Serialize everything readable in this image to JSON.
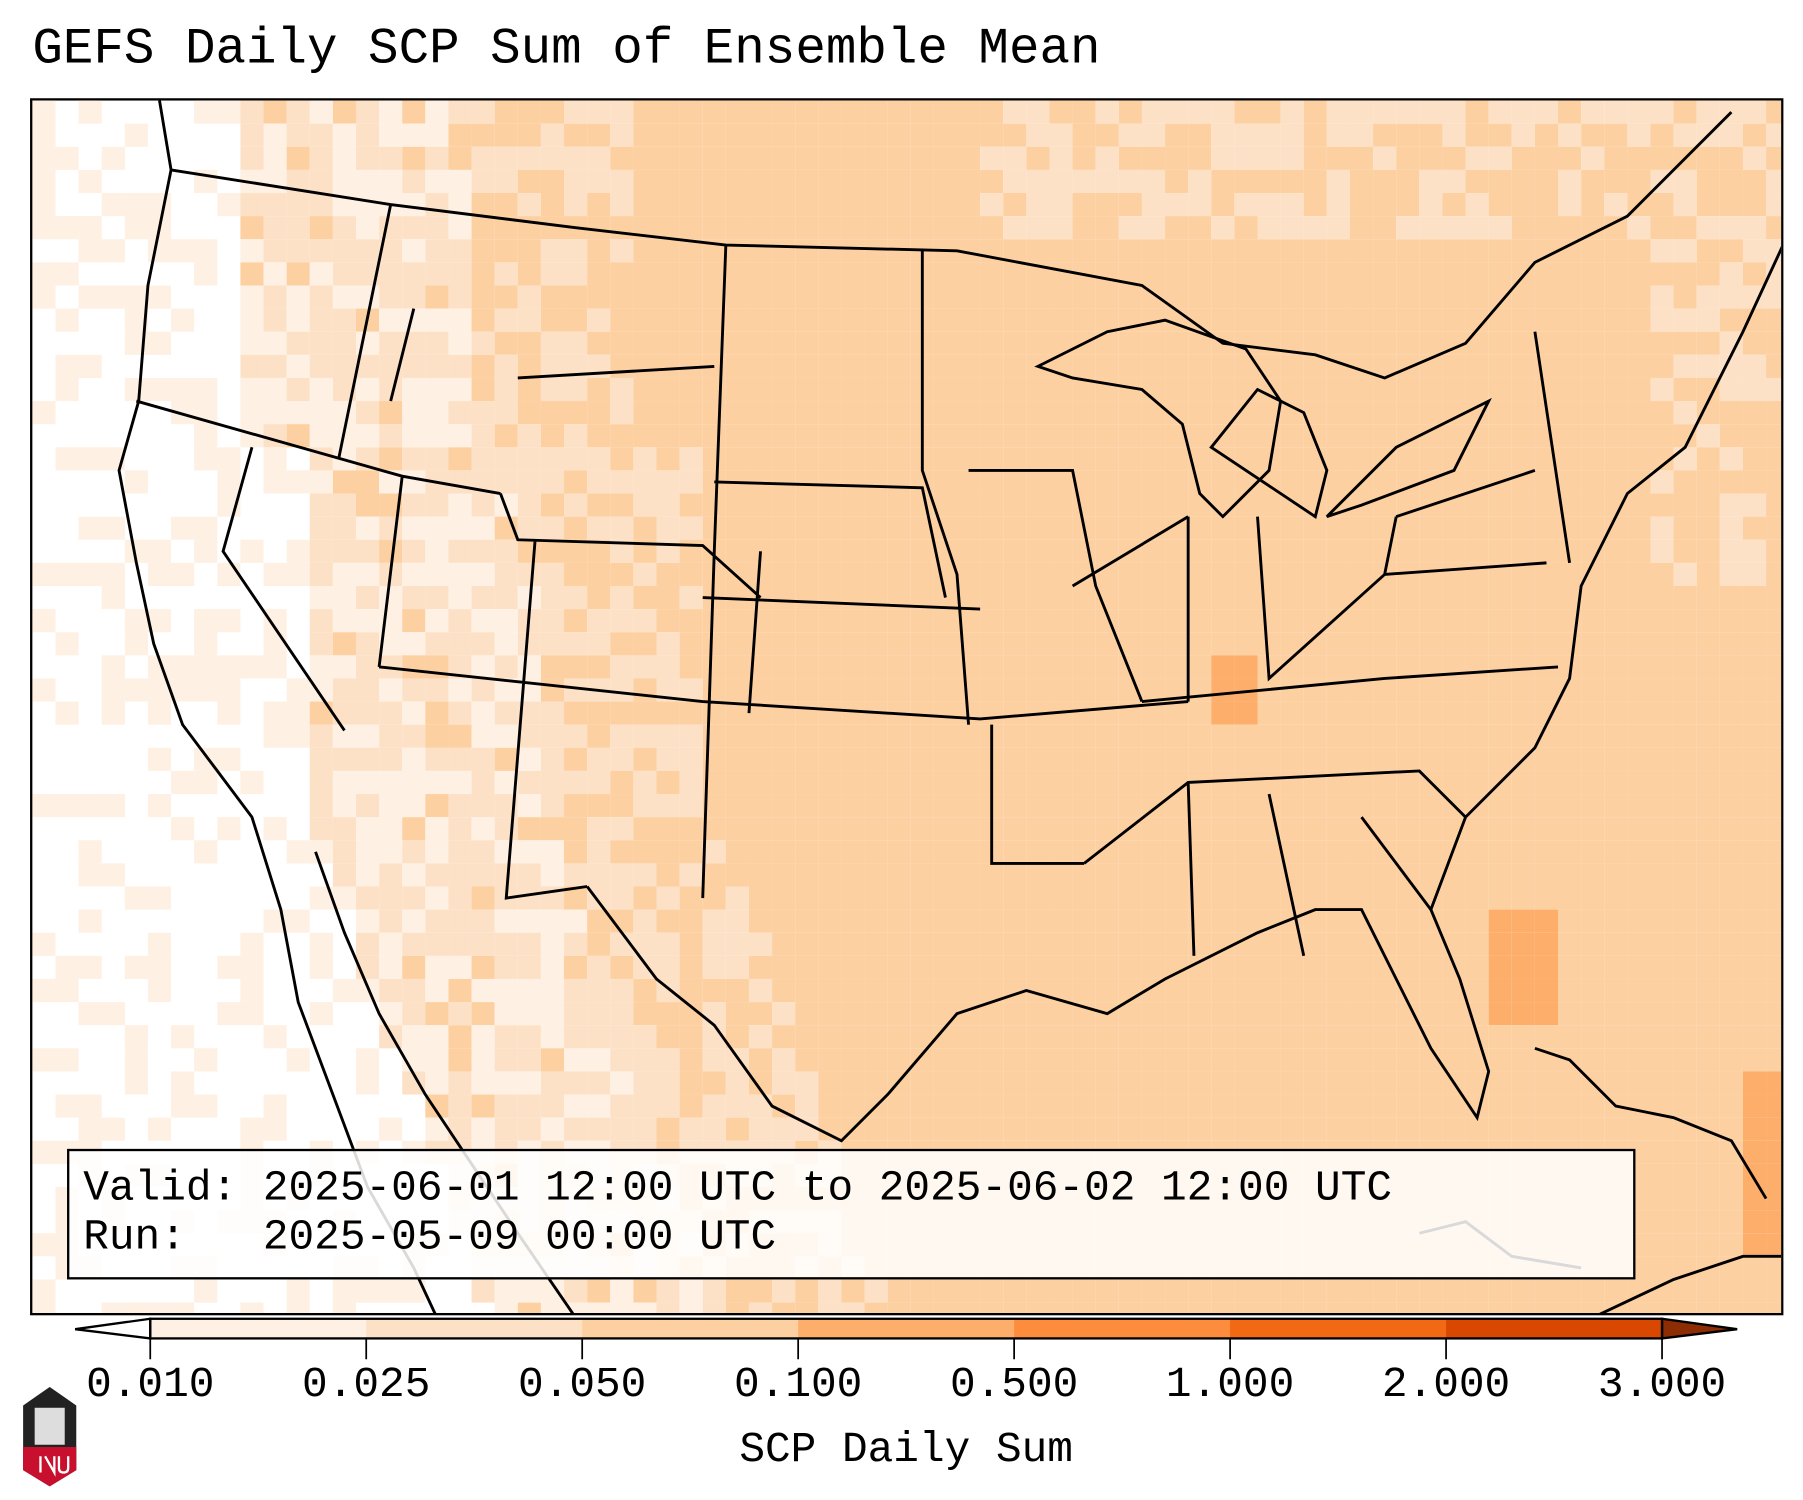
{
  "chart_data": {
    "type": "heatmap",
    "title": "GEFS Daily SCP Sum of Ensemble Mean",
    "xlabel": "SCP Daily Sum",
    "colorbar": {
      "levels": [
        0.01,
        0.025,
        0.05,
        0.1,
        0.5,
        1.0,
        2.0,
        3.0
      ],
      "tick_labels": [
        "0.010",
        "0.025",
        "0.050",
        "0.100",
        "0.500",
        "1.000",
        "2.000",
        "3.000"
      ],
      "colors": [
        "#fef0e3",
        "#fde1c6",
        "#fdd0a2",
        "#fdae6b",
        "#fd8d3c",
        "#f16913",
        "#d94801"
      ],
      "under_color": "#ffffff",
      "over_color": "#8c2d04",
      "extend": "both"
    },
    "region": "Continental United States",
    "description_values": {
      "west": "below 0.010 to 0.025",
      "plains_midwest_southeast": "0.100 to 0.500",
      "local_max": "0.500 to 1.000"
    }
  },
  "info": {
    "valid": "Valid: 2025-06-01 12:00 UTC to 2025-06-02 12:00 UTC",
    "run": "Run:   2025-05-09 00:00 UTC"
  },
  "logo": {
    "text": "NIU"
  },
  "colors": {
    "frame": "#000000"
  }
}
